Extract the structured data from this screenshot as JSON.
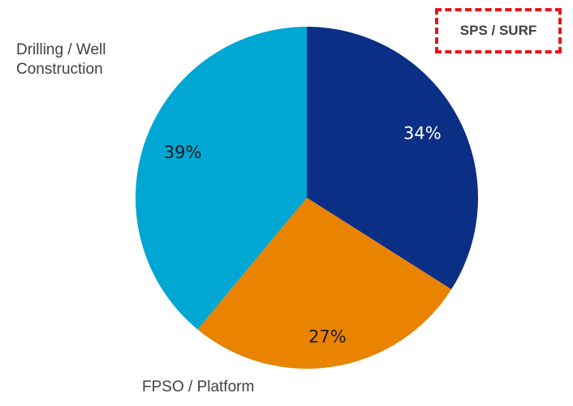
{
  "chart_data": {
    "type": "pie",
    "categories": [
      "SPS / SURF",
      "FPSO / Platform",
      "Drilling / Well Construction"
    ],
    "values": [
      34,
      27,
      39
    ],
    "value_labels": [
      "34%",
      "27%",
      "39%"
    ],
    "colors": [
      "#0b2f84",
      "#e98300",
      "#00a7d3"
    ]
  }
}
